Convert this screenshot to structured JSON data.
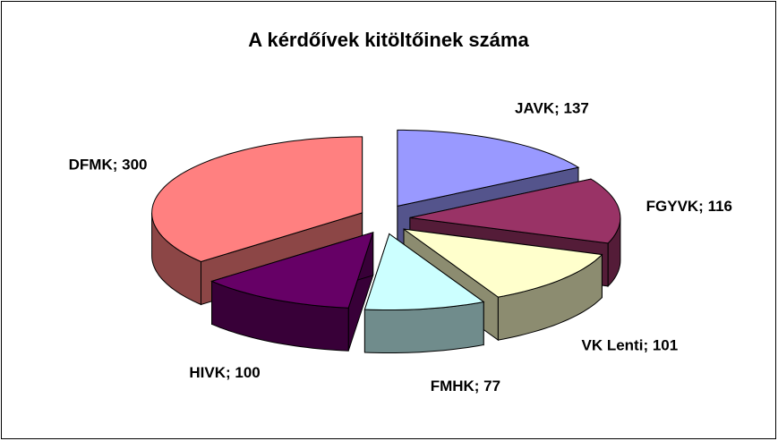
{
  "chart_data": {
    "type": "pie3d",
    "title": "A kérdőívek kitöltőinek száma",
    "categories": [
      "JAVK",
      "FGYVK",
      "VK Lenti",
      "FMHK",
      "HIVK",
      "DFMK"
    ],
    "values": [
      137,
      116,
      101,
      77,
      100,
      300
    ],
    "value_labels": [
      "JAVK; 137",
      "FGYVK; 116",
      "VK Lenti; 101",
      "FMHK; 77",
      "HIVK; 100",
      "DFMK; 300"
    ],
    "colors": [
      "#9999ff",
      "#993366",
      "#ffffcc",
      "#ccffff",
      "#660066",
      "#ff8080"
    ]
  }
}
